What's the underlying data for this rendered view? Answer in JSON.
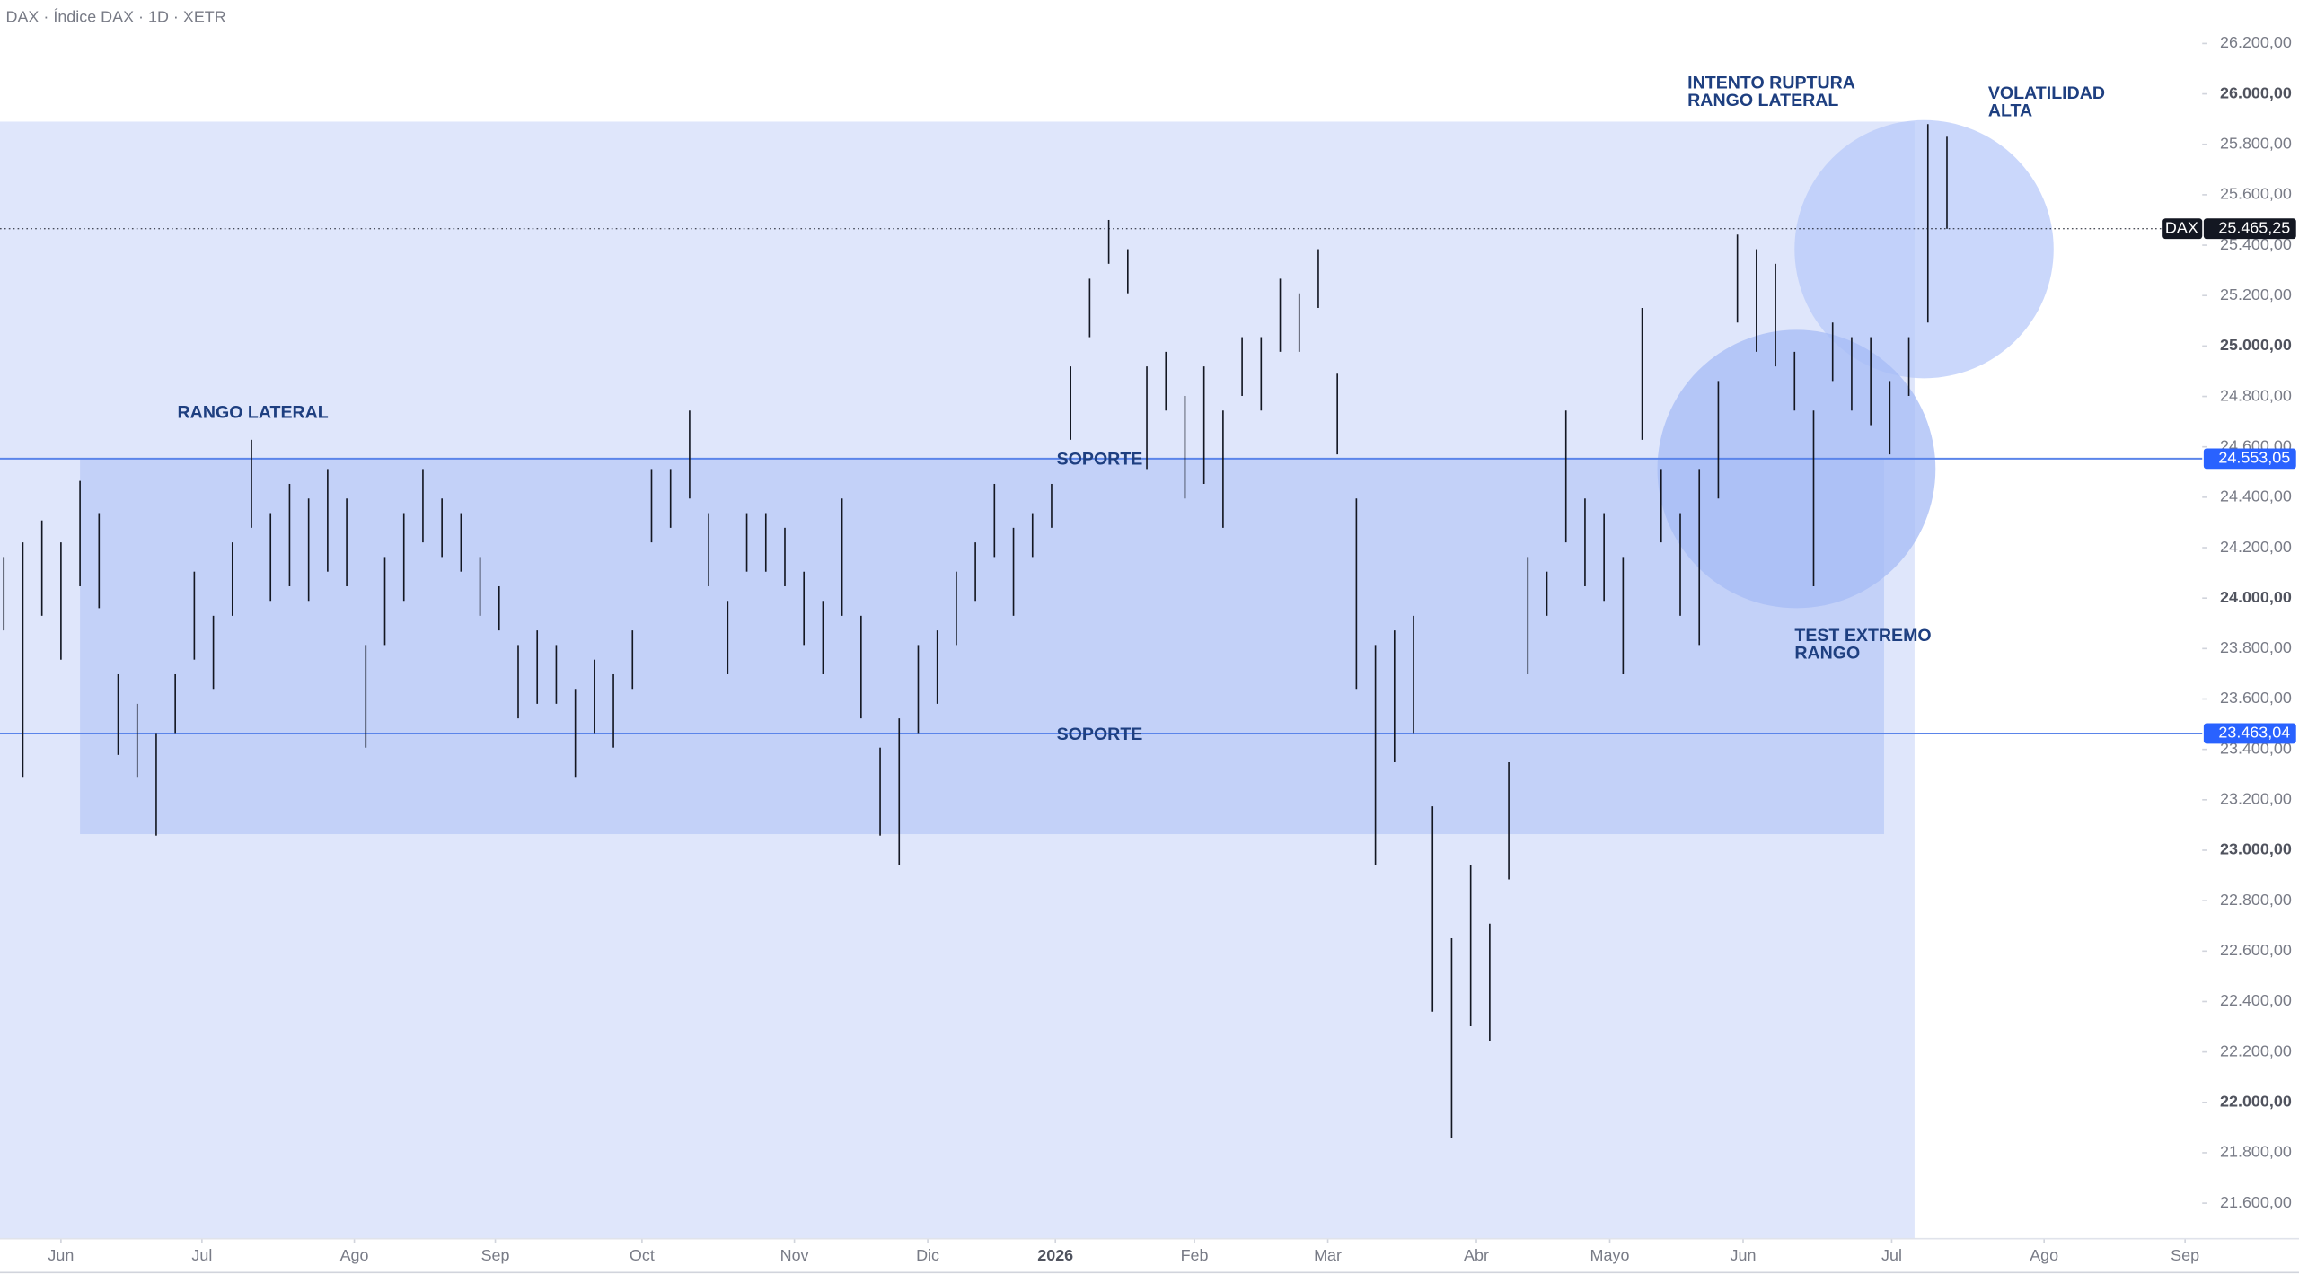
{
  "header": "DAX · Índice DAX · 1D · XETR",
  "chart_data": {
    "type": "range-bar",
    "color": "#131722",
    "high": [
      24163,
      24221,
      24308,
      24221,
      24465,
      24337,
      23698,
      23581,
      23465,
      23698,
      24105,
      23930,
      24221,
      24628,
      24337,
      24453,
      24395,
      24512,
      24395,
      23814,
      24163,
      24337,
      24512,
      24395,
      24337,
      24163,
      24047,
      23814,
      23872,
      23814,
      23640,
      23756,
      23698,
      23872,
      24512,
      24512,
      24744,
      24337,
      23989,
      24337,
      24337,
      24279,
      24105,
      23989,
      24395,
      23930,
      23407,
      23523,
      23814,
      23872,
      24105,
      24221,
      24453,
      24279,
      24337,
      24453,
      24919,
      25267,
      25500,
      25384,
      24919,
      24977,
      24802,
      24919,
      24744,
      25035,
      25035,
      25267,
      25209,
      25384,
      24890,
      24395,
      23814,
      23872,
      23930,
      23174,
      22651,
      22942,
      22709,
      23349,
      24163,
      24105,
      24744,
      24395,
      24337,
      24163,
      25151,
      24512,
      24337,
      24512,
      24861,
      25442,
      25384,
      25326,
      24977,
      24744,
      25093,
      25035,
      25035,
      24861,
      25035,
      25880,
      25830
    ],
    "low": [
      23872,
      23291,
      23930,
      23756,
      24047,
      23960,
      23378,
      23291,
      23058,
      23465,
      23756,
      23640,
      23930,
      24279,
      23989,
      24047,
      23989,
      24105,
      24047,
      23407,
      23814,
      23989,
      24221,
      24163,
      24105,
      23930,
      23872,
      23523,
      23581,
      23581,
      23291,
      23465,
      23407,
      23640,
      24221,
      24279,
      24395,
      24047,
      23698,
      24105,
      24105,
      24047,
      23814,
      23698,
      23930,
      23523,
      23058,
      22942,
      23465,
      23581,
      23814,
      23989,
      24163,
      23930,
      24163,
      24279,
      24628,
      25035,
      25326,
      25209,
      24512,
      24744,
      24395,
      24453,
      24279,
      24802,
      24744,
      24977,
      24977,
      25151,
      24570,
      23640,
      22942,
      23349,
      23465,
      22360,
      21860,
      22302,
      22244,
      22884,
      23698,
      23930,
      24221,
      24047,
      23989,
      23698,
      24628,
      24221,
      23930,
      23814,
      24395,
      25093,
      24977,
      24919,
      24744,
      24047,
      24861,
      24744,
      24686,
      24570,
      24802,
      25093,
      25465
    ],
    "xlim": [
      -0.2,
      115.4
    ],
    "xticks": [
      {
        "value": 3,
        "label": "Jun"
      },
      {
        "value": 10.4,
        "label": "Jul"
      },
      {
        "value": 18.4,
        "label": "Ago"
      },
      {
        "value": 25.8,
        "label": "Sep"
      },
      {
        "value": 33.5,
        "label": "Oct"
      },
      {
        "value": 41.5,
        "label": "Nov"
      },
      {
        "value": 48.5,
        "label": "Dic"
      },
      {
        "value": 55.2,
        "label": "2026"
      },
      {
        "value": 62.5,
        "label": "Feb"
      },
      {
        "value": 69.5,
        "label": "Mar"
      },
      {
        "value": 77.3,
        "label": "Abr"
      },
      {
        "value": 84.3,
        "label": "Mayo"
      },
      {
        "value": 91.3,
        "label": "Jun"
      },
      {
        "value": 99.1,
        "label": "Jul"
      },
      {
        "value": 107.1,
        "label": "Ago"
      },
      {
        "value": 114.5,
        "label": "Sep"
      }
    ],
    "ylim": [
      21459,
      26372
    ],
    "yticks": [
      {
        "value": 21600,
        "label": "21.600,00"
      },
      {
        "value": 21800,
        "label": "21.800,00"
      },
      {
        "value": 22000,
        "label": "22.000,00"
      },
      {
        "value": 22200,
        "label": "22.200,00"
      },
      {
        "value": 22400,
        "label": "22.400,00"
      },
      {
        "value": 22600,
        "label": "22.600,00"
      },
      {
        "value": 22800,
        "label": "22.800,00"
      },
      {
        "value": 23000,
        "label": "23.000,00"
      },
      {
        "value": 23200,
        "label": "23.200,00"
      },
      {
        "value": 23400,
        "label": "23.400,00"
      },
      {
        "value": 23600,
        "label": "23.600,00"
      },
      {
        "value": 23800,
        "label": "23.800,00"
      },
      {
        "value": 24000,
        "label": "24.000,00"
      },
      {
        "value": 24200,
        "label": "24.200,00"
      },
      {
        "value": 24400,
        "label": "24.400,00"
      },
      {
        "value": 24600,
        "label": "24.600,00"
      },
      {
        "value": 24800,
        "label": "24.800,00"
      },
      {
        "value": 25000,
        "label": "25.000,00"
      },
      {
        "value": 25200,
        "label": "25.200,00"
      },
      {
        "value": 25400,
        "label": "25.400,00"
      },
      {
        "value": 25600,
        "label": "25.600,00"
      },
      {
        "value": 25800,
        "label": "25.800,00"
      },
      {
        "value": 26000,
        "label": "26.000,00"
      },
      {
        "value": 26200,
        "label": "26.200,00"
      }
    ],
    "last": {
      "name": "DAX",
      "value": 25465.25,
      "label": "25.465,25"
    },
    "levels": [
      {
        "value": 24553.05,
        "label": "24.553,05",
        "text": "SOPORTE"
      },
      {
        "value": 23463.04,
        "label": "23.463,04",
        "text": "SOPORTE"
      }
    ],
    "zones": [
      {
        "x": [
          -0.2,
          100.3
        ],
        "y": [
          21459,
          25890
        ],
        "color": "#dfe6fb"
      },
      {
        "x": [
          4,
          98.7
        ],
        "y": [
          23064,
          24553.05
        ],
        "color": "#c3d1f8"
      }
    ],
    "circles": [
      {
        "x": 100.8,
        "y": 25384,
        "rx": 6.8,
        "ry": 512,
        "color": "#b8c9f9"
      },
      {
        "x": 94.1,
        "y": 24512,
        "rx": 7.3,
        "ry": 552,
        "color": "#a6bbf6"
      }
    ],
    "annotations": [
      {
        "lines": [
          "RANGO LATERAL"
        ]
      },
      {
        "lines": [
          "INTENTO RUPTURA",
          "RANGO LATERAL"
        ]
      },
      {
        "lines": [
          "VOLATILIDAD",
          "ALTA"
        ]
      },
      {
        "lines": [
          "TEST EXTREMO",
          "RANGO"
        ]
      }
    ]
  }
}
